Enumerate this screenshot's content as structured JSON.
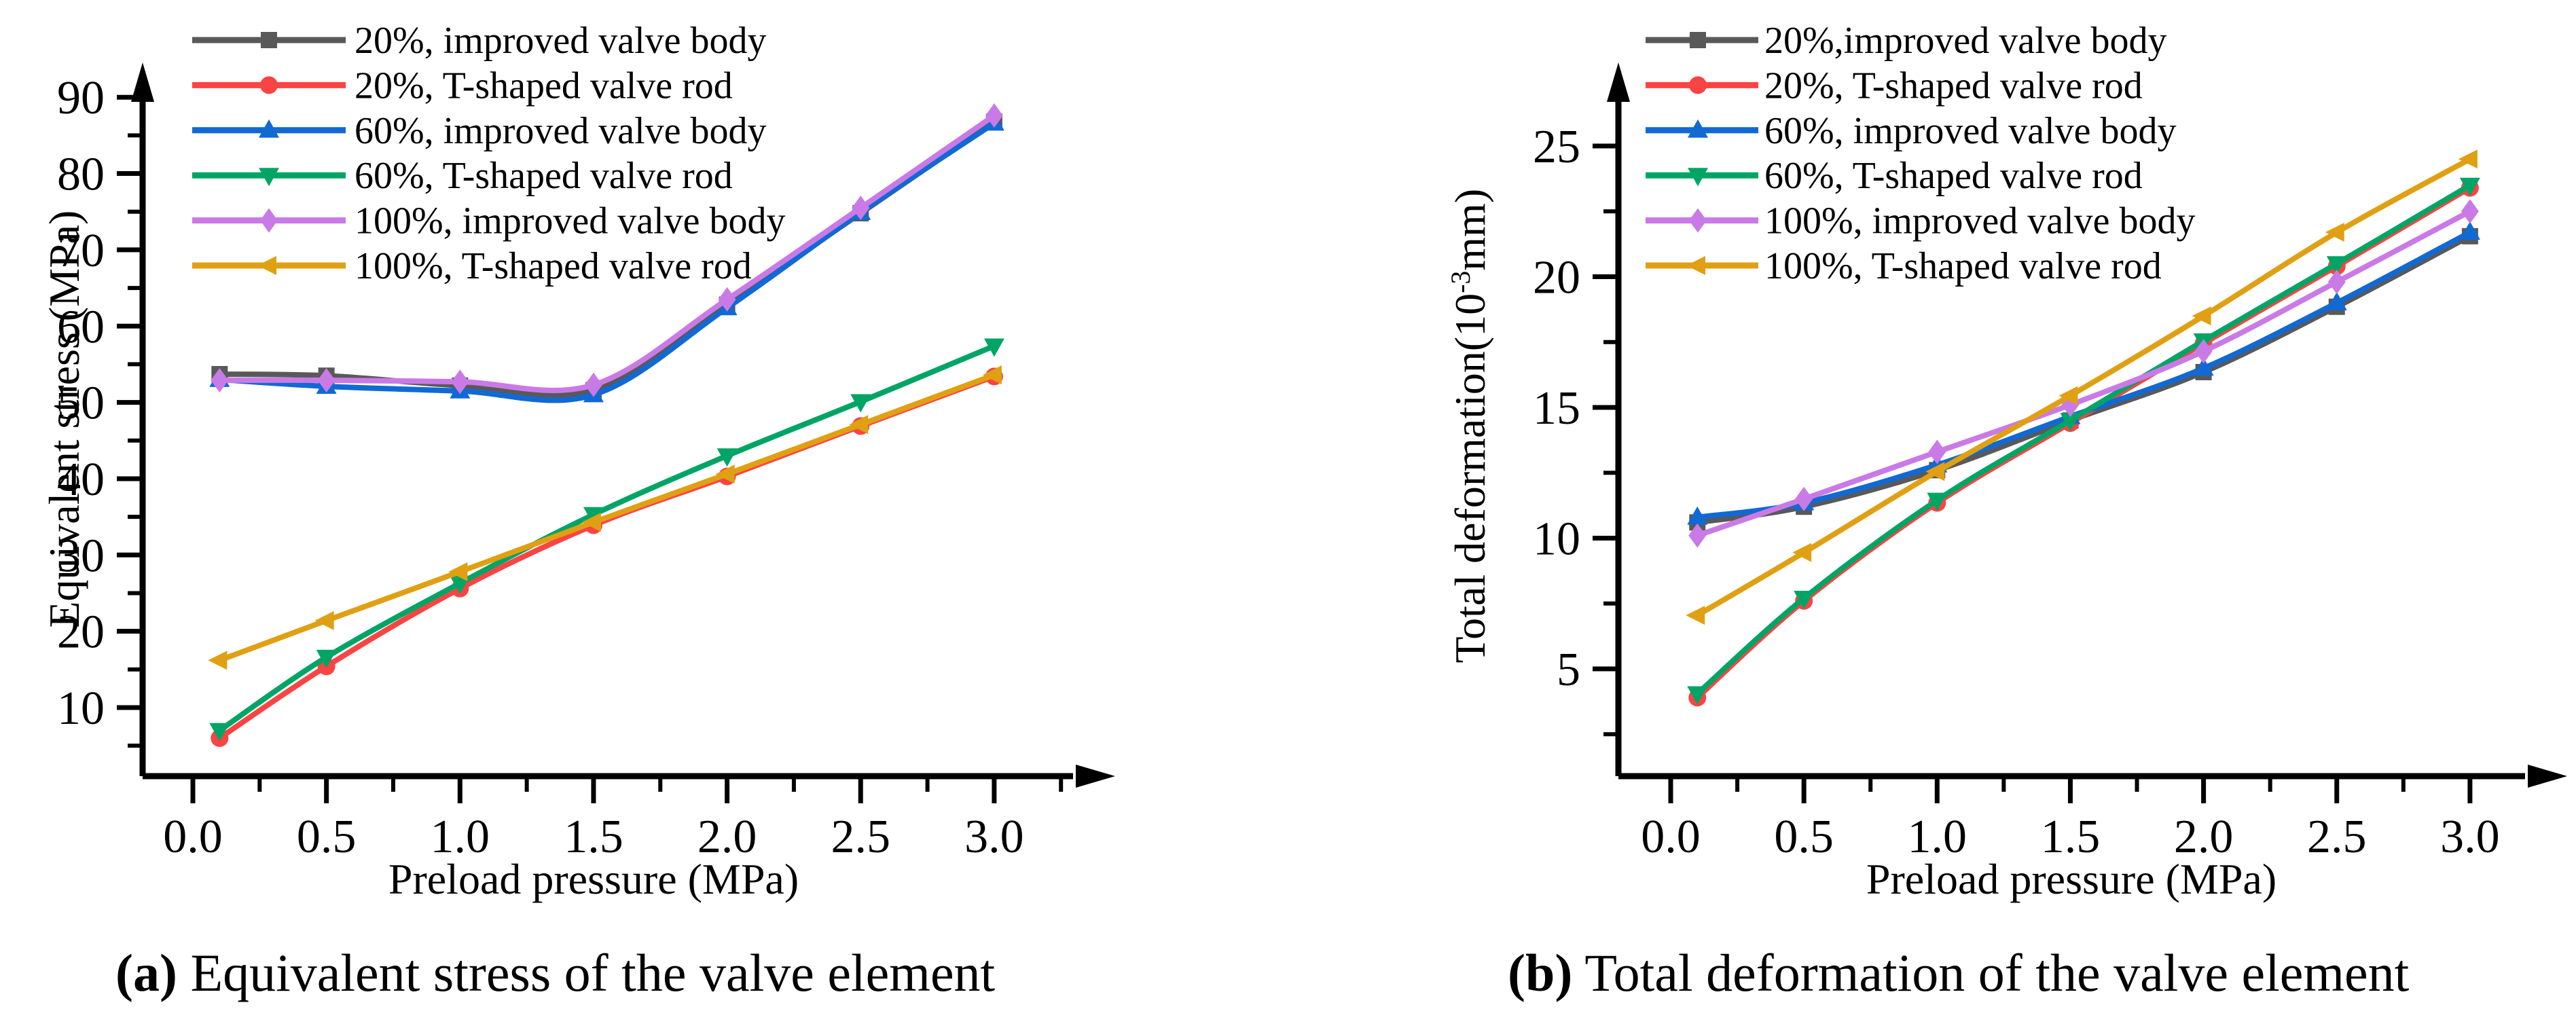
{
  "figure": {
    "description": "Two line charts comparing valve element simulation results vs preload pressure",
    "text_color": "#000000",
    "axis_color": "#000000"
  },
  "chart_data": [
    {
      "type": "line",
      "panel": "a",
      "caption_label": "(a)",
      "caption_rest": " Equivalent stress of the valve element",
      "xlabel": "Preload pressure (MPa)",
      "ylabel": "Equivalent stress (MPa)",
      "ylabel_parts": {
        "pre": "Equivalent stress (MPa)",
        "sup": "",
        "post": ""
      },
      "x": [
        0.1,
        0.5,
        1.0,
        1.5,
        2.0,
        2.5,
        3.0
      ],
      "xticks": [
        0.0,
        0.5,
        1.0,
        1.5,
        2.0,
        2.5,
        3.0
      ],
      "x_tick_labels": [
        "0.0",
        "0.5",
        "1.0",
        "1.5",
        "2.0",
        "2.5",
        "3.0"
      ],
      "xminors": [
        0.25,
        0.75,
        1.25,
        1.75,
        2.25,
        2.75,
        3.25
      ],
      "yticks": [
        10,
        20,
        30,
        40,
        50,
        60,
        70,
        80,
        90
      ],
      "y_tick_labels": [
        "10",
        "20",
        "30",
        "40",
        "50",
        "60",
        "70",
        "80",
        "90"
      ],
      "yminors": [
        5,
        15,
        25,
        35,
        45,
        55,
        65,
        75,
        85
      ],
      "xlim": [
        0,
        3.35
      ],
      "ylim": [
        1,
        93
      ],
      "grid": false,
      "legend_position": "top-left",
      "series": [
        {
          "name": "20%, improved valve body",
          "color": "#595959",
          "marker": "square",
          "values": [
            53.7,
            53.5,
            52.2,
            51.6,
            62.8,
            74.8,
            86.8
          ]
        },
        {
          "name": "20%, T-shaped valve rod",
          "color": "#f94444",
          "marker": "circle",
          "values": [
            6.0,
            15.4,
            25.6,
            33.9,
            40.3,
            46.9,
            53.4
          ]
        },
        {
          "name": "60%, improved valve body",
          "color": "#1169d4",
          "marker": "triangle-up",
          "values": [
            53.0,
            52.1,
            51.5,
            51.0,
            62.4,
            74.9,
            86.6
          ]
        },
        {
          "name": "60%, T-shaped valve rod",
          "color": "#00a566",
          "marker": "triangle-down",
          "values": [
            7.0,
            16.6,
            26.3,
            35.3,
            43.0,
            50.1,
            57.4
          ]
        },
        {
          "name": "100%, improved valve body",
          "color": "#ca7ae6",
          "marker": "diamond",
          "values": [
            52.9,
            52.9,
            52.7,
            52.3,
            63.5,
            75.5,
            87.6
          ]
        },
        {
          "name": "100%, T-shaped valve rod",
          "color": "#e0a013",
          "marker": "triangle-left",
          "values": [
            16.2,
            21.4,
            27.8,
            34.3,
            40.6,
            47.1,
            53.6
          ]
        }
      ]
    },
    {
      "type": "line",
      "panel": "b",
      "caption_label": "(b)",
      "caption_rest": " Total deformation of the valve element",
      "xlabel": "Preload pressure (MPa)",
      "ylabel": "Total deformation(10-3mm)",
      "ylabel_parts": {
        "pre": "Total deformation(10",
        "sup": "-3",
        "post": "mm)"
      },
      "x": [
        0.1,
        0.5,
        1.0,
        1.5,
        2.0,
        2.5,
        3.0
      ],
      "xticks": [
        0.0,
        0.5,
        1.0,
        1.5,
        2.0,
        2.5,
        3.0
      ],
      "x_tick_labels": [
        "0.0",
        "0.5",
        "1.0",
        "1.5",
        "2.0",
        "2.5",
        "3.0"
      ],
      "xminors": [
        0.25,
        0.75,
        1.25,
        1.75,
        2.25,
        2.75,
        3.25
      ],
      "yticks": [
        5,
        10,
        15,
        20,
        25
      ],
      "y_tick_labels": [
        "5",
        "10",
        "15",
        "20",
        "25"
      ],
      "yminors": [
        2.5,
        7.5,
        12.5,
        17.5,
        22.5,
        27.5
      ],
      "xlim": [
        0,
        3.35
      ],
      "ylim": [
        1,
        27.5
      ],
      "grid": false,
      "legend_position": "top-left",
      "series": [
        {
          "name": "20%,improved valve body",
          "color": "#595959",
          "marker": "square",
          "values": [
            10.6,
            11.2,
            12.6,
            14.5,
            16.35,
            18.85,
            21.55
          ]
        },
        {
          "name": "20%, T-shaped valve rod",
          "color": "#f94444",
          "marker": "circle",
          "values": [
            3.9,
            7.6,
            11.35,
            14.4,
            17.45,
            20.4,
            23.4
          ]
        },
        {
          "name": "60%, improved valve body",
          "color": "#1169d4",
          "marker": "triangle-up",
          "values": [
            10.8,
            11.35,
            12.8,
            14.65,
            16.5,
            19.0,
            21.7
          ]
        },
        {
          "name": "60%, T-shaped valve rod",
          "color": "#00a566",
          "marker": "triangle-down",
          "values": [
            4.05,
            7.7,
            11.45,
            14.5,
            17.55,
            20.5,
            23.5
          ]
        },
        {
          "name": "100%, improved valve body",
          "color": "#ca7ae6",
          "marker": "diamond",
          "values": [
            10.1,
            11.5,
            13.3,
            15.1,
            17.15,
            19.8,
            22.5
          ]
        },
        {
          "name": "100%, T-shaped valve rod",
          "color": "#e0a013",
          "marker": "triangle-left",
          "values": [
            7.05,
            9.45,
            12.55,
            15.45,
            18.5,
            21.7,
            24.5
          ]
        }
      ]
    }
  ]
}
